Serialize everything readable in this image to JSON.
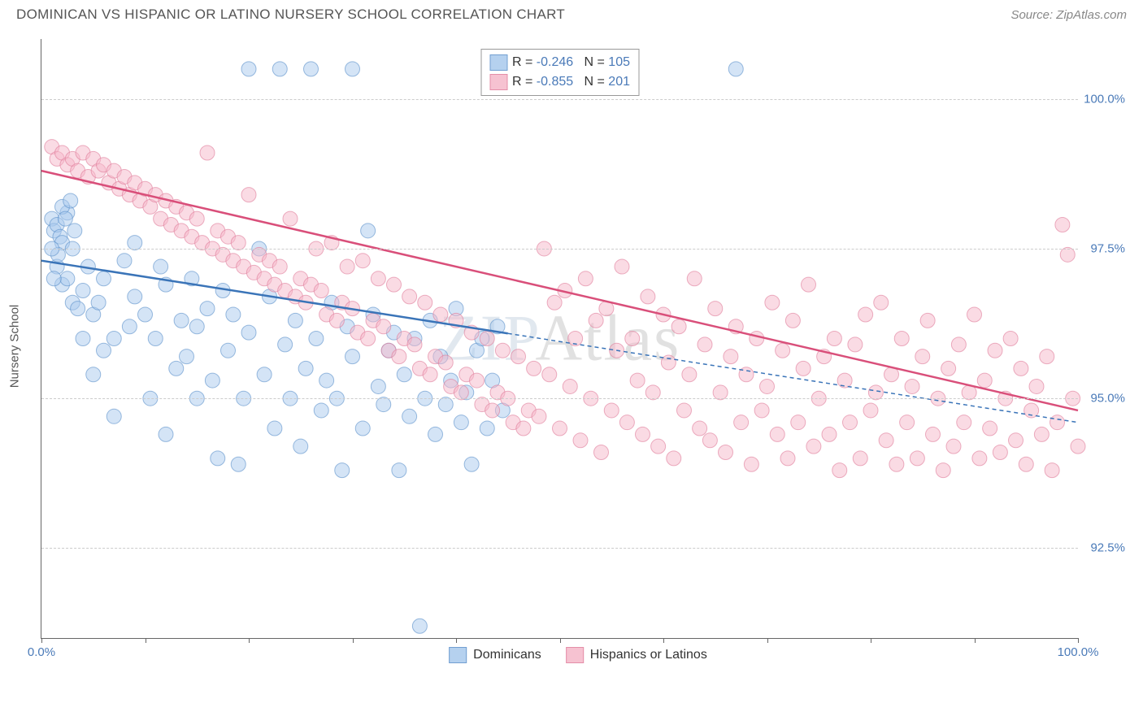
{
  "title": "DOMINICAN VS HISPANIC OR LATINO NURSERY SCHOOL CORRELATION CHART",
  "source": "Source: ZipAtlas.com",
  "watermark_zip": "ZIP",
  "watermark_atlas": "Atlas",
  "y_axis_title": "Nursery School",
  "chart": {
    "type": "scatter",
    "background_color": "#ffffff",
    "grid_color": "#cccccc",
    "axis_color": "#666666",
    "tick_label_color": "#4a7ab8",
    "tick_fontsize": 15,
    "xlim": [
      0,
      100
    ],
    "ylim": [
      91,
      101
    ],
    "x_ticks": [
      0,
      10,
      20,
      30,
      40,
      50,
      60,
      70,
      80,
      90,
      100
    ],
    "x_tick_labels": {
      "0": "0.0%",
      "100": "100.0%"
    },
    "y_gridlines": [
      92.5,
      95.0,
      97.5,
      100.0
    ],
    "y_tick_labels": {
      "92.5": "92.5%",
      "95.0": "95.0%",
      "97.5": "97.5%",
      "100.0": "100.0%"
    },
    "marker_radius": 9,
    "marker_opacity": 0.55,
    "line_width": 2.5,
    "series": [
      {
        "name": "Dominicans",
        "color_fill": "#a9c9ed",
        "color_stroke": "#5a8fc9",
        "fill_opacity": 0.5,
        "R": "-0.246",
        "N": "105",
        "trend": {
          "x1": 0,
          "y1": 97.3,
          "x2": 100,
          "y2": 94.6,
          "color": "#3a74b8",
          "solid_until_x": 45,
          "dash_after": true
        },
        "points": [
          [
            1,
            98.0
          ],
          [
            1.2,
            97.8
          ],
          [
            1.5,
            97.2
          ],
          [
            1.5,
            97.9
          ],
          [
            1.8,
            97.7
          ],
          [
            2,
            97.6
          ],
          [
            2,
            96.9
          ],
          [
            2.5,
            97.0
          ],
          [
            2.5,
            98.1
          ],
          [
            3,
            97.5
          ],
          [
            3,
            96.6
          ],
          [
            3.5,
            96.5
          ],
          [
            4,
            96.8
          ],
          [
            4,
            96.0
          ],
          [
            4.5,
            97.2
          ],
          [
            5,
            96.4
          ],
          [
            5,
            95.4
          ],
          [
            5.5,
            96.6
          ],
          [
            6,
            97.0
          ],
          [
            6,
            95.8
          ],
          [
            7,
            96.0
          ],
          [
            7,
            94.7
          ],
          [
            8,
            97.3
          ],
          [
            8.5,
            96.2
          ],
          [
            9,
            96.7
          ],
          [
            9,
            97.6
          ],
          [
            10,
            96.4
          ],
          [
            10.5,
            95.0
          ],
          [
            11,
            96.0
          ],
          [
            11.5,
            97.2
          ],
          [
            12,
            96.9
          ],
          [
            12,
            94.4
          ],
          [
            13,
            95.5
          ],
          [
            13.5,
            96.3
          ],
          [
            14,
            95.7
          ],
          [
            14.5,
            97.0
          ],
          [
            15,
            96.2
          ],
          [
            15,
            95.0
          ],
          [
            16,
            96.5
          ],
          [
            16.5,
            95.3
          ],
          [
            17,
            94.0
          ],
          [
            17.5,
            96.8
          ],
          [
            18,
            95.8
          ],
          [
            18.5,
            96.4
          ],
          [
            19,
            93.9
          ],
          [
            19.5,
            95.0
          ],
          [
            20,
            100.5
          ],
          [
            20,
            96.1
          ],
          [
            21,
            97.5
          ],
          [
            21.5,
            95.4
          ],
          [
            22,
            96.7
          ],
          [
            22.5,
            94.5
          ],
          [
            23,
            100.5
          ],
          [
            23.5,
            95.9
          ],
          [
            24,
            95.0
          ],
          [
            24.5,
            96.3
          ],
          [
            25,
            94.2
          ],
          [
            25.5,
            95.5
          ],
          [
            26,
            100.5
          ],
          [
            26.5,
            96.0
          ],
          [
            27,
            94.8
          ],
          [
            27.5,
            95.3
          ],
          [
            28,
            96.6
          ],
          [
            28.5,
            95.0
          ],
          [
            29,
            93.8
          ],
          [
            29.5,
            96.2
          ],
          [
            30,
            100.5
          ],
          [
            30,
            95.7
          ],
          [
            31,
            94.5
          ],
          [
            31.5,
            97.8
          ],
          [
            32,
            96.4
          ],
          [
            32.5,
            95.2
          ],
          [
            33,
            94.9
          ],
          [
            33.5,
            95.8
          ],
          [
            34,
            96.1
          ],
          [
            34.5,
            93.8
          ],
          [
            35,
            95.4
          ],
          [
            35.5,
            94.7
          ],
          [
            36,
            96.0
          ],
          [
            36.5,
            91.2
          ],
          [
            37,
            95.0
          ],
          [
            37.5,
            96.3
          ],
          [
            38,
            94.4
          ],
          [
            38.5,
            95.7
          ],
          [
            39,
            94.9
          ],
          [
            39.5,
            95.3
          ],
          [
            40,
            96.5
          ],
          [
            40.5,
            94.6
          ],
          [
            41,
            95.1
          ],
          [
            41.5,
            93.9
          ],
          [
            42,
            95.8
          ],
          [
            42.5,
            96.0
          ],
          [
            43,
            94.5
          ],
          [
            43.5,
            95.3
          ],
          [
            44,
            96.2
          ],
          [
            44.5,
            94.8
          ],
          [
            67,
            100.5
          ],
          [
            2,
            98.2
          ],
          [
            2.3,
            98.0
          ],
          [
            3.2,
            97.8
          ],
          [
            1.2,
            97.0
          ],
          [
            1.6,
            97.4
          ],
          [
            2.8,
            98.3
          ],
          [
            1.0,
            97.5
          ]
        ]
      },
      {
        "name": "Hispanics or Latinos",
        "color_fill": "#f5b8c9",
        "color_stroke": "#e07b9a",
        "fill_opacity": 0.5,
        "R": "-0.855",
        "N": "201",
        "trend": {
          "x1": 0,
          "y1": 98.8,
          "x2": 100,
          "y2": 94.8,
          "color": "#d94f7a",
          "solid_until_x": 100,
          "dash_after": false
        },
        "points": [
          [
            1,
            99.2
          ],
          [
            1.5,
            99.0
          ],
          [
            2,
            99.1
          ],
          [
            2.5,
            98.9
          ],
          [
            3,
            99.0
          ],
          [
            3.5,
            98.8
          ],
          [
            4,
            99.1
          ],
          [
            4.5,
            98.7
          ],
          [
            5,
            99.0
          ],
          [
            5.5,
            98.8
          ],
          [
            6,
            98.9
          ],
          [
            6.5,
            98.6
          ],
          [
            7,
            98.8
          ],
          [
            7.5,
            98.5
          ],
          [
            8,
            98.7
          ],
          [
            8.5,
            98.4
          ],
          [
            9,
            98.6
          ],
          [
            9.5,
            98.3
          ],
          [
            10,
            98.5
          ],
          [
            10.5,
            98.2
          ],
          [
            11,
            98.4
          ],
          [
            11.5,
            98.0
          ],
          [
            12,
            98.3
          ],
          [
            12.5,
            97.9
          ],
          [
            13,
            98.2
          ],
          [
            13.5,
            97.8
          ],
          [
            14,
            98.1
          ],
          [
            14.5,
            97.7
          ],
          [
            15,
            98.0
          ],
          [
            15.5,
            97.6
          ],
          [
            16,
            99.1
          ],
          [
            16.5,
            97.5
          ],
          [
            17,
            97.8
          ],
          [
            17.5,
            97.4
          ],
          [
            18,
            97.7
          ],
          [
            18.5,
            97.3
          ],
          [
            19,
            97.6
          ],
          [
            19.5,
            97.2
          ],
          [
            20,
            98.4
          ],
          [
            20.5,
            97.1
          ],
          [
            21,
            97.4
          ],
          [
            21.5,
            97.0
          ],
          [
            22,
            97.3
          ],
          [
            22.5,
            96.9
          ],
          [
            23,
            97.2
          ],
          [
            23.5,
            96.8
          ],
          [
            24,
            98.0
          ],
          [
            24.5,
            96.7
          ],
          [
            25,
            97.0
          ],
          [
            25.5,
            96.6
          ],
          [
            26,
            96.9
          ],
          [
            26.5,
            97.5
          ],
          [
            27,
            96.8
          ],
          [
            27.5,
            96.4
          ],
          [
            28,
            97.6
          ],
          [
            28.5,
            96.3
          ],
          [
            29,
            96.6
          ],
          [
            29.5,
            97.2
          ],
          [
            30,
            96.5
          ],
          [
            30.5,
            96.1
          ],
          [
            31,
            97.3
          ],
          [
            31.5,
            96.0
          ],
          [
            32,
            96.3
          ],
          [
            32.5,
            97.0
          ],
          [
            33,
            96.2
          ],
          [
            33.5,
            95.8
          ],
          [
            34,
            96.9
          ],
          [
            34.5,
            95.7
          ],
          [
            35,
            96.0
          ],
          [
            35.5,
            96.7
          ],
          [
            36,
            95.9
          ],
          [
            36.5,
            95.5
          ],
          [
            37,
            96.6
          ],
          [
            37.5,
            95.4
          ],
          [
            38,
            95.7
          ],
          [
            38.5,
            96.4
          ],
          [
            39,
            95.6
          ],
          [
            39.5,
            95.2
          ],
          [
            40,
            96.3
          ],
          [
            40.5,
            95.1
          ],
          [
            41,
            95.4
          ],
          [
            41.5,
            96.1
          ],
          [
            42,
            95.3
          ],
          [
            42.5,
            94.9
          ],
          [
            43,
            96.0
          ],
          [
            43.5,
            94.8
          ],
          [
            44,
            95.1
          ],
          [
            44.5,
            95.8
          ],
          [
            45,
            95.0
          ],
          [
            45.5,
            94.6
          ],
          [
            46,
            95.7
          ],
          [
            46.5,
            94.5
          ],
          [
            47,
            94.8
          ],
          [
            47.5,
            95.5
          ],
          [
            48,
            94.7
          ],
          [
            48.5,
            97.5
          ],
          [
            49,
            95.4
          ],
          [
            49.5,
            96.6
          ],
          [
            50,
            94.5
          ],
          [
            50.5,
            96.8
          ],
          [
            51,
            95.2
          ],
          [
            51.5,
            96.0
          ],
          [
            52,
            94.3
          ],
          [
            52.5,
            97.0
          ],
          [
            53,
            95.0
          ],
          [
            53.5,
            96.3
          ],
          [
            54,
            94.1
          ],
          [
            54.5,
            96.5
          ],
          [
            55,
            94.8
          ],
          [
            55.5,
            95.8
          ],
          [
            56,
            97.2
          ],
          [
            56.5,
            94.6
          ],
          [
            57,
            96.0
          ],
          [
            57.5,
            95.3
          ],
          [
            58,
            94.4
          ],
          [
            58.5,
            96.7
          ],
          [
            59,
            95.1
          ],
          [
            59.5,
            94.2
          ],
          [
            60,
            96.4
          ],
          [
            60.5,
            95.6
          ],
          [
            61,
            94.0
          ],
          [
            61.5,
            96.2
          ],
          [
            62,
            94.8
          ],
          [
            62.5,
            95.4
          ],
          [
            63,
            97.0
          ],
          [
            63.5,
            94.5
          ],
          [
            64,
            95.9
          ],
          [
            64.5,
            94.3
          ],
          [
            65,
            96.5
          ],
          [
            65.5,
            95.1
          ],
          [
            66,
            94.1
          ],
          [
            66.5,
            95.7
          ],
          [
            67,
            96.2
          ],
          [
            67.5,
            94.6
          ],
          [
            68,
            95.4
          ],
          [
            68.5,
            93.9
          ],
          [
            69,
            96.0
          ],
          [
            69.5,
            94.8
          ],
          [
            70,
            95.2
          ],
          [
            70.5,
            96.6
          ],
          [
            71,
            94.4
          ],
          [
            71.5,
            95.8
          ],
          [
            72,
            94.0
          ],
          [
            72.5,
            96.3
          ],
          [
            73,
            94.6
          ],
          [
            73.5,
            95.5
          ],
          [
            74,
            96.9
          ],
          [
            74.5,
            94.2
          ],
          [
            75,
            95.0
          ],
          [
            75.5,
            95.7
          ],
          [
            76,
            94.4
          ],
          [
            76.5,
            96.0
          ],
          [
            77,
            93.8
          ],
          [
            77.5,
            95.3
          ],
          [
            78,
            94.6
          ],
          [
            78.5,
            95.9
          ],
          [
            79,
            94.0
          ],
          [
            79.5,
            96.4
          ],
          [
            80,
            94.8
          ],
          [
            80.5,
            95.1
          ],
          [
            81,
            96.6
          ],
          [
            81.5,
            94.3
          ],
          [
            82,
            95.4
          ],
          [
            82.5,
            93.9
          ],
          [
            83,
            96.0
          ],
          [
            83.5,
            94.6
          ],
          [
            84,
            95.2
          ],
          [
            84.5,
            94.0
          ],
          [
            85,
            95.7
          ],
          [
            85.5,
            96.3
          ],
          [
            86,
            94.4
          ],
          [
            86.5,
            95.0
          ],
          [
            87,
            93.8
          ],
          [
            87.5,
            95.5
          ],
          [
            88,
            94.2
          ],
          [
            88.5,
            95.9
          ],
          [
            89,
            94.6
          ],
          [
            89.5,
            95.1
          ],
          [
            90,
            96.4
          ],
          [
            90.5,
            94.0
          ],
          [
            91,
            95.3
          ],
          [
            91.5,
            94.5
          ],
          [
            92,
            95.8
          ],
          [
            92.5,
            94.1
          ],
          [
            93,
            95.0
          ],
          [
            93.5,
            96.0
          ],
          [
            94,
            94.3
          ],
          [
            94.5,
            95.5
          ],
          [
            95,
            93.9
          ],
          [
            95.5,
            94.8
          ],
          [
            96,
            95.2
          ],
          [
            96.5,
            94.4
          ],
          [
            97,
            95.7
          ],
          [
            97.5,
            93.8
          ],
          [
            98,
            94.6
          ],
          [
            98.5,
            97.9
          ],
          [
            99,
            97.4
          ],
          [
            99.5,
            95.0
          ],
          [
            100,
            94.2
          ]
        ]
      }
    ]
  },
  "legend_box": {
    "r_prefix": "R = ",
    "n_prefix": "N = "
  },
  "bottom_legend": {
    "series1_label": "Dominicans",
    "series2_label": "Hispanics or Latinos"
  }
}
